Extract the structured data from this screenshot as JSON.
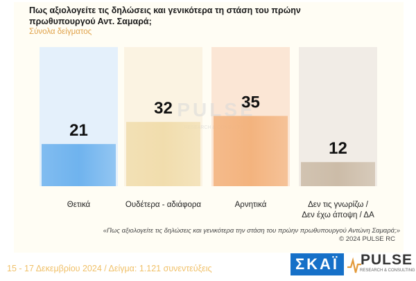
{
  "header": {
    "title": "Πως αξιολογείτε τις δηλώσεις και γενικότερα τη στάση του πρώην πρωθυπουργού Αντ. Σαμαρά;",
    "subtitle": "Σύνολα δείγματος"
  },
  "chart_data": {
    "type": "bar",
    "categories": [
      "Θετικά",
      "Ουδέτερα - αδιάφορα",
      "Αρνητικά",
      "Δεν τις γνωρίζω / Δεν έχω άποψη / ΔΑ"
    ],
    "category_lines": [
      [
        "Θετικά"
      ],
      [
        "Ουδέτερα - αδιάφορα"
      ],
      [
        "Αρνητικά"
      ],
      [
        "Δεν τις γνωρίζω /",
        "Δεν έχω άποψη / ΔΑ"
      ]
    ],
    "values": [
      21,
      32,
      35,
      12
    ],
    "ylim": [
      0,
      55
    ],
    "colors": [
      "#6fb3ee",
      "#f1ddad",
      "#f3b37e",
      "#ccbca8"
    ],
    "column_bg": [
      "#e4f0fb",
      "#fbf3e2",
      "#fbe6d5",
      "#f1ece6"
    ],
    "watermark": "PULSE",
    "watermark_sub": "RESEARCH & CONSULTING"
  },
  "footer": {
    "question_note": "«Πως αξιολογείτε τις δηλώσεις και γενικότερα την στάση του πρώην πρωθυπουργού Αντώνη Σαμαρά;»",
    "copyright": "© 2024 PULSE RC",
    "dates_sample": "15 - 17 Δεκεμβρίου 2024 / Δείγμα: 1.121 συνεντεύξεις"
  },
  "logos": {
    "skai": "ΣΚΑΪ",
    "pulse": "PULSE",
    "pulse_sub": "RESEARCH & CONSULTING"
  }
}
